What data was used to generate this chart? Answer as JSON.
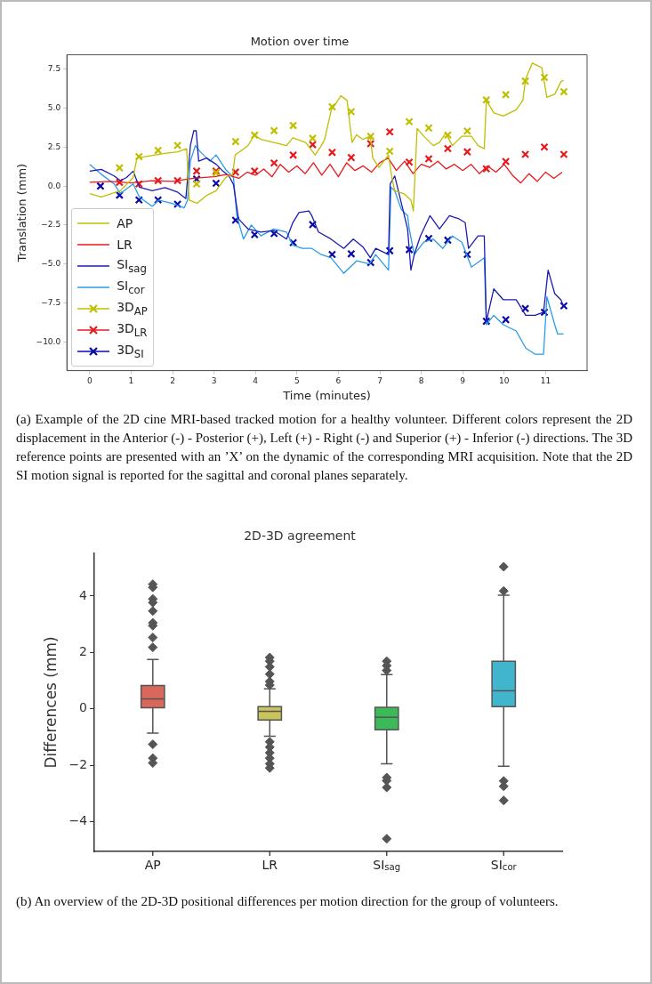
{
  "chart_data": [
    {
      "type": "line",
      "title": "Motion over time",
      "xlabel": "Time (minutes)",
      "ylabel": "Translation (mm)",
      "xlim": [
        -0.55,
        12.0
      ],
      "ylim": [
        -11.85,
        8.43
      ],
      "xticks": [
        0,
        1,
        2,
        3,
        4,
        5,
        6,
        7,
        8,
        9,
        10,
        11
      ],
      "yticks": [
        {
          "value": -10,
          "label": "−10.0"
        },
        {
          "value": -7.5,
          "label": "−7.5"
        },
        {
          "value": -5,
          "label": "−5.0"
        },
        {
          "value": -2.5,
          "label": "−2.5"
        },
        {
          "value": 0,
          "label": "0.0"
        },
        {
          "value": 2.5,
          "label": "2.5"
        },
        {
          "value": 5,
          "label": "5.0"
        },
        {
          "value": 7.5,
          "label": "7.5"
        }
      ],
      "legend": "bottom left",
      "marker": "none",
      "series": [
        {
          "name": "AP",
          "type": "line",
          "color": "#bfbf00",
          "x": [
            0,
            0.28,
            0.74,
            1.05,
            1.14,
            1.36,
            1.59,
            1.82,
            2.13,
            2.34,
            2.4,
            2.59,
            2.82,
            3.05,
            3.28,
            3.45,
            3.51,
            3.82,
            3.98,
            4.13,
            4.44,
            4.75,
            4.9,
            5.21,
            5.44,
            5.59,
            5.67,
            5.83,
            5.94,
            6.06,
            6.21,
            6.33,
            6.44,
            6.59,
            6.77,
            6.83,
            6.98,
            7.21,
            7.29,
            7.36,
            7.59,
            7.75,
            7.81,
            7.9,
            8.06,
            8.29,
            8.44,
            8.59,
            8.75,
            8.98,
            9.21,
            9.37,
            9.52,
            9.57,
            9.75,
            9.98,
            10.29,
            10.45,
            10.52,
            10.68,
            10.91,
            11.03,
            11.22,
            11.37,
            11.43
          ],
          "values": [
            -0.48,
            -0.7,
            -0.3,
            0.55,
            1.8,
            1.9,
            2.0,
            2.1,
            2.2,
            2.4,
            -0.9,
            -1.1,
            -0.6,
            -0.3,
            0.55,
            0.76,
            2.0,
            2.6,
            3.3,
            3.0,
            2.8,
            2.6,
            3.1,
            2.8,
            2.0,
            2.6,
            3.0,
            4.9,
            5.3,
            5.8,
            5.5,
            2.8,
            3.3,
            3.0,
            3.2,
            1.8,
            1.2,
            2.0,
            0.55,
            -0.3,
            -0.5,
            -0.9,
            -1.6,
            3.7,
            3.2,
            2.6,
            2.8,
            3.4,
            2.6,
            3.2,
            3.2,
            2.6,
            2.4,
            5.5,
            4.7,
            4.5,
            4.9,
            5.5,
            6.9,
            7.9,
            7.6,
            5.7,
            5.9,
            6.7,
            6.8
          ]
        },
        {
          "name": "LR",
          "type": "line",
          "color": "#e8191c",
          "x": [
            0,
            0.5,
            1.0,
            1.5,
            2.0,
            2.5,
            3.0,
            3.3,
            3.6,
            3.8,
            4.0,
            4.2,
            4.4,
            4.6,
            4.8,
            5.0,
            5.2,
            5.4,
            5.6,
            5.8,
            6.0,
            6.2,
            6.4,
            6.6,
            6.8,
            7.0,
            7.2,
            7.4,
            7.6,
            7.8,
            8.0,
            8.2,
            8.4,
            8.6,
            8.8,
            9.0,
            9.2,
            9.4,
            9.6,
            9.8,
            10.0,
            10.2,
            10.4,
            10.6,
            10.8,
            11.0,
            11.2,
            11.4
          ],
          "values": [
            0.25,
            0.3,
            0.2,
            0.35,
            0.3,
            0.5,
            0.6,
            0.75,
            0.5,
            0.9,
            0.7,
            1.1,
            0.6,
            1.4,
            0.9,
            1.3,
            0.8,
            1.5,
            0.7,
            1.4,
            0.6,
            1.5,
            1.0,
            1.3,
            0.9,
            1.5,
            1.8,
            1.0,
            1.6,
            0.8,
            1.4,
            1.2,
            1.6,
            1.1,
            1.4,
            1.0,
            1.4,
            0.8,
            1.3,
            0.9,
            1.4,
            0.7,
            0.2,
            0.8,
            0.3,
            0.9,
            0.5,
            0.9
          ]
        },
        {
          "name": "SI$_{sag}$",
          "type": "line",
          "color": "#1c1cb4",
          "x": [
            0,
            0.28,
            0.59,
            0.74,
            0.89,
            1.05,
            1.2,
            1.51,
            1.82,
            2.13,
            2.32,
            2.43,
            2.51,
            2.57,
            2.63,
            2.82,
            3.05,
            3.2,
            3.36,
            3.47,
            3.59,
            3.82,
            4.13,
            4.44,
            4.75,
            4.9,
            5.05,
            5.29,
            5.36,
            5.52,
            5.82,
            6.13,
            6.36,
            6.59,
            6.77,
            6.9,
            7.21,
            7.25,
            7.36,
            7.52,
            7.67,
            7.75,
            7.83,
            7.98,
            8.21,
            8.44,
            8.68,
            8.91,
            9.06,
            9.14,
            9.37,
            9.52,
            9.57,
            9.75,
            9.98,
            10.29,
            10.52,
            10.75,
            10.95,
            11.06,
            11.22,
            11.37,
            11.43
          ],
          "values": [
            0.96,
            1.07,
            0.65,
            0.35,
            0.55,
            0.96,
            -0.07,
            -0.3,
            -0.1,
            -0.4,
            -0.8,
            2.6,
            3.55,
            3.55,
            1.6,
            1.8,
            1.4,
            1.0,
            0.65,
            0.1,
            -2.1,
            -2.75,
            -2.95,
            -2.85,
            -3.4,
            -2.35,
            -1.7,
            -1.6,
            -1.9,
            -2.95,
            -3.4,
            -4.0,
            -3.4,
            -3.9,
            -4.6,
            -4.0,
            -4.4,
            0.14,
            0.65,
            -1.1,
            -2.75,
            -5.4,
            -4.4,
            -3.2,
            -1.9,
            -2.75,
            -1.9,
            -2.1,
            -2.35,
            -4.0,
            -3.2,
            -3.2,
            -8.7,
            -6.6,
            -7.3,
            -7.3,
            -8.3,
            -8.3,
            -8.1,
            -5.4,
            -6.9,
            -7.3,
            -7.7
          ]
        },
        {
          "name": "SI$_{cor}$",
          "type": "line",
          "color": "#2b9be6",
          "x": [
            0,
            0.28,
            0.59,
            0.74,
            1.05,
            1.2,
            1.51,
            1.66,
            1.97,
            2.28,
            2.36,
            2.43,
            2.55,
            2.67,
            2.9,
            3.05,
            3.28,
            3.47,
            3.55,
            3.71,
            3.9,
            4.13,
            4.44,
            4.75,
            4.9,
            5.13,
            5.36,
            5.59,
            5.82,
            6.13,
            6.44,
            6.75,
            6.9,
            7.21,
            7.27,
            7.36,
            7.52,
            7.67,
            7.71,
            7.83,
            8.06,
            8.29,
            8.52,
            8.75,
            8.98,
            9.21,
            9.52,
            9.57,
            9.75,
            9.98,
            10.29,
            10.52,
            10.75,
            10.95,
            11.03,
            11.22,
            11.29,
            11.43
          ],
          "values": [
            1.4,
            0.76,
            0.14,
            -0.48,
            0.14,
            -0.7,
            -1.3,
            -0.9,
            -1.1,
            -1.4,
            -0.9,
            1.6,
            2.6,
            2.2,
            1.6,
            2.0,
            1.07,
            0.55,
            -1.9,
            -3.4,
            -2.5,
            -3.2,
            -2.75,
            -2.95,
            -3.8,
            -4.0,
            -4.0,
            -4.4,
            -4.6,
            -5.6,
            -4.8,
            -5.0,
            -4.4,
            -5.4,
            -0.07,
            -0.3,
            -1.5,
            -1.9,
            -2.75,
            -4.4,
            -3.6,
            -3.4,
            -4.0,
            -3.2,
            -3.6,
            -5.2,
            -4.6,
            -8.9,
            -8.3,
            -8.9,
            -9.3,
            -10.4,
            -10.8,
            -10.8,
            -7.1,
            -8.9,
            -9.5,
            -9.5
          ]
        },
        {
          "name": "3D$_{AP}$",
          "type": "scatter",
          "marker": "cross",
          "color": "#bfbf00",
          "x": [
            0.72,
            1.19,
            1.65,
            2.12,
            2.58,
            3.05,
            3.52,
            3.98,
            4.45,
            4.91,
            5.38,
            5.85,
            6.31,
            6.78,
            7.24,
            7.71,
            8.18,
            8.64,
            9.11,
            9.57,
            10.04,
            10.51,
            10.97,
            11.44
          ],
          "values": [
            1.17,
            1.89,
            2.29,
            2.61,
            0.14,
            0.86,
            2.86,
            3.27,
            3.56,
            3.89,
            3.07,
            5.09,
            4.78,
            3.19,
            2.24,
            4.14,
            3.73,
            3.28,
            3.54,
            5.54,
            5.87,
            6.74,
            6.98,
            6.06
          ]
        },
        {
          "name": "3D$_{LR}$",
          "type": "scatter",
          "marker": "cross",
          "color": "#e8191c",
          "x": [
            0.72,
            1.19,
            1.65,
            2.12,
            2.58,
            3.05,
            3.52,
            3.98,
            4.45,
            4.91,
            5.38,
            5.85,
            6.31,
            6.78,
            7.24,
            7.71,
            8.18,
            8.64,
            9.11,
            9.57,
            10.04,
            10.51,
            10.97,
            11.44
          ],
          "values": [
            0.24,
            0.14,
            0.35,
            0.35,
            0.96,
            0.96,
            0.9,
            0.96,
            1.48,
            1.99,
            2.66,
            2.16,
            1.83,
            2.72,
            3.48,
            1.54,
            1.75,
            2.41,
            2.2,
            1.11,
            1.58,
            2.04,
            2.51,
            2.04
          ]
        },
        {
          "name": "3D$_{SI}$",
          "type": "scatter",
          "marker": "cross",
          "color": "#0a0aa8",
          "x": [
            0.26,
            0.72,
            1.19,
            1.65,
            2.12,
            2.58,
            3.05,
            3.52,
            3.98,
            4.45,
            4.91,
            5.38,
            5.85,
            6.31,
            6.78,
            7.24,
            7.71,
            8.18,
            8.64,
            9.11,
            9.57,
            10.04,
            10.51,
            10.97,
            11.44
          ],
          "values": [
            0.0,
            -0.58,
            -0.89,
            -0.89,
            -1.16,
            0.45,
            0.18,
            -2.19,
            -3.12,
            -3.05,
            -3.63,
            -2.47,
            -4.39,
            -4.35,
            -4.91,
            -4.15,
            -4.08,
            -3.36,
            -3.47,
            -4.39,
            -8.68,
            -8.58,
            -7.86,
            -8.1,
            -7.69
          ]
        }
      ],
      "annotations": [
        "(a)  Example of the 2D cine MRI-based tracked motion for a healthy volunteer.  Different colors represent the 2D displacement in the Anterior (-) - Posterior (+), Left (+) - Right (-) and Superior (+) - Inferior (-) directions. The 3D reference points are presented with an ’X’ on the dynamic of the corresponding MRI acquisition. Note that the 2D SI motion signal is reported for the sagittal and coronal planes separately."
      ]
    },
    {
      "type": "box",
      "title": "2D-3D agreement",
      "ylabel": "Differences (mm)",
      "categories": [
        "AP",
        "LR",
        "SI$_{sag}$",
        "SI$_{cor}$"
      ],
      "colors": [
        "#d9675b",
        "#c9c55c",
        "#3cba5a",
        "#40b5cc"
      ],
      "marker": "diamond",
      "ylim": [
        -5.06,
        5.52
      ],
      "yticks": [
        {
          "value": -4,
          "label": "−4"
        },
        {
          "value": -2,
          "label": "−2"
        },
        0,
        2,
        4
      ],
      "boxes": [
        {
          "low": -0.86,
          "q1": 0.04,
          "median": 0.35,
          "q3": 0.83,
          "high": 1.75,
          "outliers": [
            4.42,
            4.31,
            3.9,
            3.77,
            3.47,
            3.05,
            2.95,
            2.53,
            2.18,
            -1.26,
            -1.75,
            -1.92
          ]
        },
        {
          "low": -0.97,
          "q1": -0.4,
          "median": -0.09,
          "q3": 0.08,
          "high": 0.71,
          "outliers": [
            1.82,
            1.69,
            1.49,
            1.23,
            0.97,
            0.84,
            -1.17,
            -1.36,
            -1.56,
            -1.75,
            -1.95,
            -2.1
          ]
        },
        {
          "low": -1.95,
          "q1": -0.74,
          "median": -0.3,
          "q3": 0.05,
          "high": 1.21,
          "outliers": [
            1.69,
            1.53,
            1.36,
            -2.44,
            -2.55,
            -2.79,
            -4.61
          ]
        },
        {
          "low": -2.04,
          "q1": 0.08,
          "median": 0.64,
          "q3": 1.69,
          "high": 4.03,
          "outliers": [
            5.04,
            4.18,
            -2.56,
            -2.75,
            -3.25
          ]
        }
      ],
      "annotations": [
        "(b)  An overview of the 2D-3D positional differences per motion direction for the group of volunteers."
      ]
    }
  ]
}
